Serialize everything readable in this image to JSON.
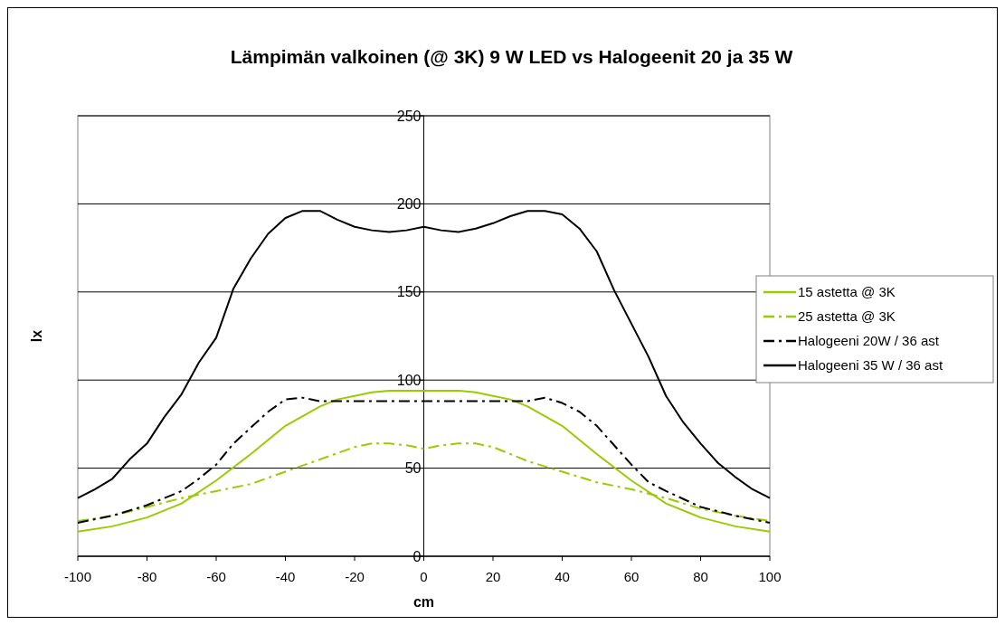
{
  "chart_data": {
    "type": "line",
    "title": "Lämpimän valkoinen (@ 3K) 9 W LED vs Halogeenit 20 ja 35 W",
    "xlabel": "cm",
    "ylabel": "lx",
    "xlim": [
      -100,
      100
    ],
    "xticks": [
      -100,
      -80,
      -60,
      -40,
      -20,
      0,
      20,
      40,
      60,
      80,
      100
    ],
    "ylim": [
      0,
      250
    ],
    "yticks": [
      0,
      50,
      100,
      150,
      200,
      250
    ],
    "grid": "y",
    "legend": "right",
    "marker": "none",
    "series": [
      {
        "name": "15 astetta @ 3K",
        "color": "#99cc00",
        "line_style": "solid",
        "x": [
          -100,
          -90,
          -80,
          -70,
          -60,
          -50,
          -40,
          -30,
          -25,
          -20,
          -15,
          -10,
          0,
          10,
          15,
          20,
          25,
          30,
          40,
          50,
          60,
          70,
          80,
          90,
          100
        ],
        "values": [
          14,
          17,
          22,
          30,
          43,
          58,
          74,
          85,
          89,
          91,
          93,
          94,
          94,
          94,
          93,
          91,
          89,
          85,
          74,
          58,
          43,
          30,
          22,
          17,
          14
        ]
      },
      {
        "name": "25 astetta @ 3K",
        "color": "#99cc00",
        "line_style": "dashdot",
        "x": [
          -100,
          -90,
          -80,
          -70,
          -60,
          -50,
          -40,
          -30,
          -20,
          -15,
          -10,
          -5,
          0,
          5,
          10,
          15,
          20,
          30,
          40,
          50,
          60,
          70,
          80,
          90,
          100
        ],
        "values": [
          20,
          23,
          28,
          33,
          37,
          41,
          48,
          55,
          62,
          64,
          64,
          63,
          61,
          63,
          64,
          64,
          62,
          54,
          48,
          42,
          38,
          33,
          27,
          23,
          20
        ]
      },
      {
        "name": "Halogeeni 20W / 36 ast",
        "color": "#000000",
        "line_style": "dashdot",
        "x": [
          -100,
          -90,
          -80,
          -70,
          -65,
          -60,
          -55,
          -50,
          -45,
          -40,
          -35,
          -30,
          0,
          30,
          35,
          40,
          45,
          50,
          55,
          60,
          65,
          70,
          80,
          90,
          100
        ],
        "values": [
          19,
          23,
          29,
          37,
          44,
          52,
          64,
          73,
          82,
          89,
          90,
          88,
          88,
          88,
          90,
          87,
          82,
          74,
          63,
          52,
          42,
          37,
          28,
          23,
          19
        ]
      },
      {
        "name": "Halogeeni 35 W / 36 ast",
        "color": "#000000",
        "line_style": "solid",
        "x": [
          -100,
          -95,
          -90,
          -85,
          -80,
          -75,
          -70,
          -65,
          -60,
          -55,
          -50,
          -45,
          -40,
          -35,
          -30,
          -25,
          -20,
          -15,
          -10,
          -5,
          0,
          5,
          10,
          15,
          20,
          25,
          30,
          35,
          40,
          45,
          50,
          55,
          60,
          65,
          70,
          75,
          80,
          85,
          90,
          95,
          100
        ],
        "values": [
          33,
          38,
          44,
          55,
          64,
          79,
          92,
          110,
          124,
          152,
          169,
          183,
          192,
          196,
          196,
          191,
          187,
          185,
          184,
          185,
          187,
          185,
          184,
          186,
          189,
          193,
          196,
          196,
          194,
          186,
          173,
          151,
          132,
          113,
          91,
          76,
          64,
          53,
          45,
          38,
          33
        ]
      }
    ]
  }
}
